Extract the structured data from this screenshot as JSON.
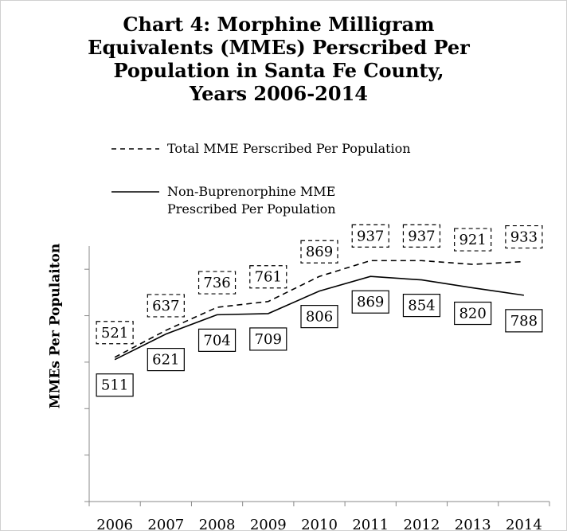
{
  "chart_data": {
    "type": "line",
    "title": "Chart 4: Morphine Milligram\nEquivalents (MMEs) Perscribed Per\nPopulation  in Santa Fe County,\nYears 2006-2014",
    "y_label": "MMEs Per Populaiton",
    "categories": [
      "2006",
      "2007",
      "2008",
      "2009",
      "2010",
      "2011",
      "2012",
      "2013",
      "2014"
    ],
    "series": [
      {
        "name": "Total MME Perscribed Per Population",
        "color": "#000000",
        "dash": true,
        "values": [
          521,
          637,
          736,
          761,
          869,
          937,
          937,
          921,
          933
        ]
      },
      {
        "name": "Non-Buprenorphine MME Prescribed Per Population",
        "color": "#000000",
        "dash": false,
        "values": [
          511,
          621,
          704,
          709,
          806,
          869,
          854,
          820,
          788
        ]
      }
    ],
    "ylim": [
      -100,
      1000
    ],
    "yticks": [
      -100,
      100,
      300,
      500,
      700,
      900
    ]
  }
}
